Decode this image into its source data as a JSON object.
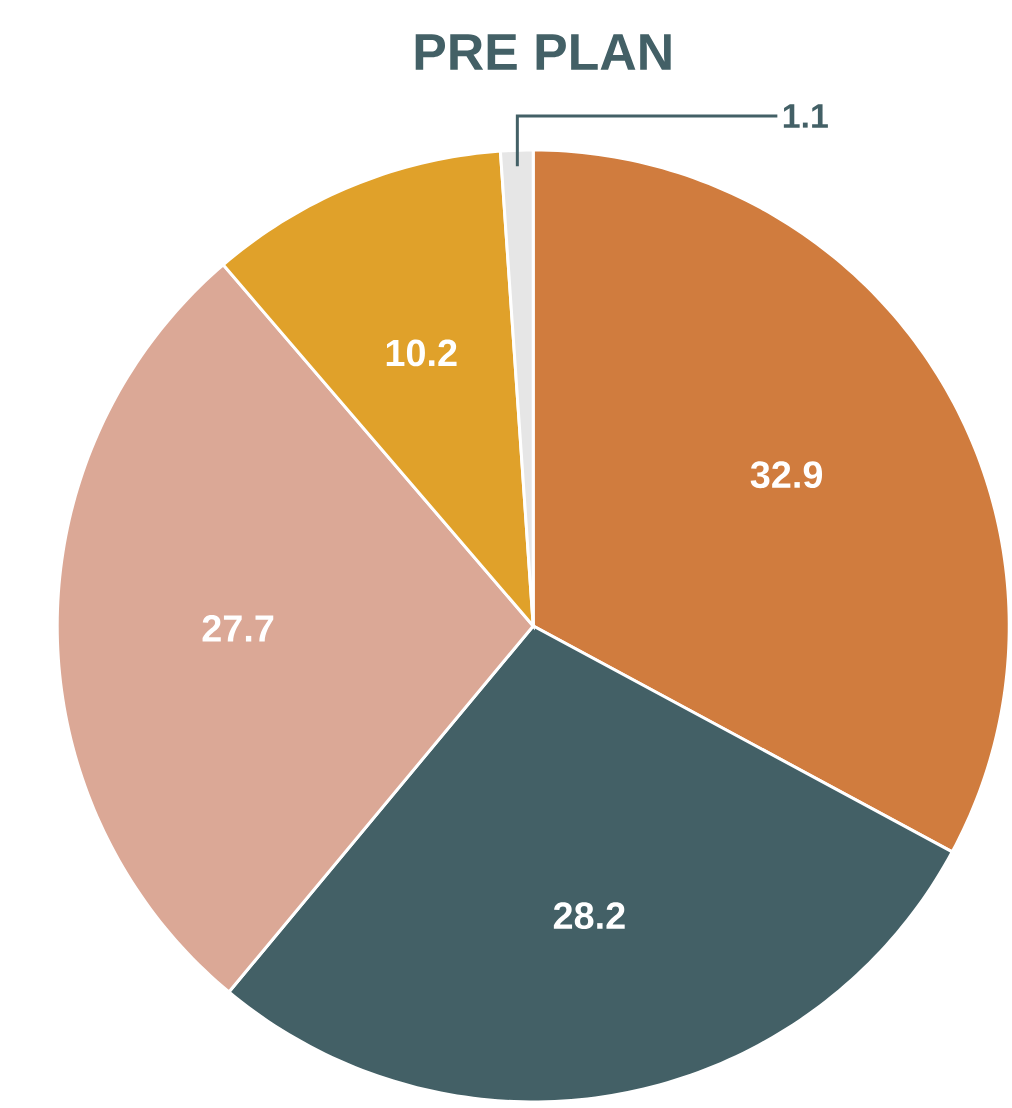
{
  "chart_data": {
    "type": "pie",
    "title": "PRE PLAN",
    "categories": [
      null,
      null,
      null,
      null,
      null
    ],
    "values": [
      32.9,
      28.2,
      27.7,
      10.2,
      1.1
    ],
    "colors": [
      "#d07c3e",
      "#436066",
      "#dba896",
      "#e0a12a",
      "#e6e6e6"
    ],
    "data_labels": true
  }
}
